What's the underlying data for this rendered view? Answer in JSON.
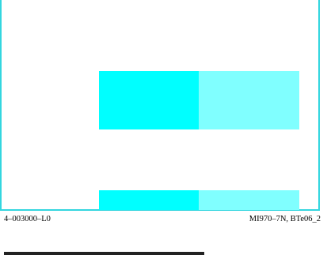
{
  "footer": {
    "left_code": "4–003000–L0",
    "right_code": "MI970–7N, BTe06_2"
  },
  "colors": {
    "frame_border": "#33d6df",
    "block_dark": "#00ffff",
    "block_light": "#80ffff",
    "bottom_bar": "#222222"
  }
}
